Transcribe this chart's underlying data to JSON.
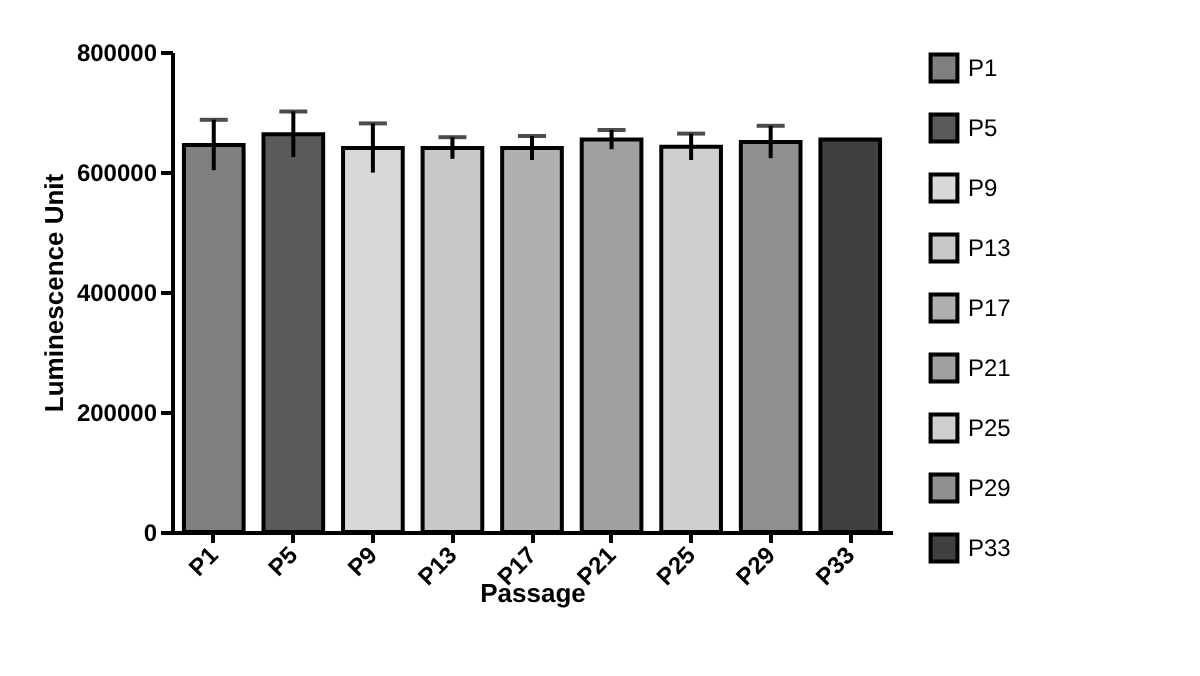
{
  "chart_data": {
    "type": "bar",
    "xlabel": "Passage",
    "ylabel": "Luminescence Unit",
    "categories": [
      "P1",
      "P5",
      "P9",
      "P13",
      "P17",
      "P21",
      "P25",
      "P29",
      "P33"
    ],
    "stacked": true,
    "series": [
      {
        "name": "P1",
        "color": "#808080",
        "values": [
          645000,
          null,
          null,
          null,
          null,
          null,
          null,
          null,
          null
        ],
        "errors": [
          42000,
          null,
          null,
          null,
          null,
          null,
          null,
          null,
          null
        ]
      },
      {
        "name": "P5",
        "color": "#5a5a5a",
        "values": [
          null,
          663000,
          null,
          null,
          null,
          null,
          null,
          null,
          null
        ],
        "errors": [
          null,
          38000,
          null,
          null,
          null,
          null,
          null,
          null,
          null
        ]
      },
      {
        "name": "P9",
        "color": "#d8d8d8",
        "values": [
          null,
          null,
          640000,
          null,
          null,
          null,
          null,
          null,
          null
        ],
        "errors": [
          null,
          null,
          41000,
          null,
          null,
          null,
          null,
          null,
          null
        ]
      },
      {
        "name": "P13",
        "color": "#c8c8c8",
        "values": [
          null,
          null,
          null,
          640000,
          null,
          null,
          null,
          null,
          null
        ],
        "errors": [
          null,
          null,
          null,
          18000,
          null,
          null,
          null,
          null,
          null
        ]
      },
      {
        "name": "P17",
        "color": "#b0b0b0",
        "values": [
          null,
          null,
          null,
          null,
          640000,
          null,
          null,
          null,
          null
        ],
        "errors": [
          null,
          null,
          null,
          null,
          20000,
          null,
          null,
          null,
          null
        ]
      },
      {
        "name": "P21",
        "color": "#a0a0a0",
        "values": [
          null,
          null,
          null,
          null,
          null,
          654000,
          null,
          null,
          null
        ],
        "errors": [
          null,
          null,
          null,
          null,
          null,
          16000,
          null,
          null,
          null
        ]
      },
      {
        "name": "P25",
        "color": "#cfcfcf",
        "values": [
          null,
          null,
          null,
          null,
          null,
          null,
          642000,
          null,
          null
        ],
        "errors": [
          null,
          null,
          null,
          null,
          null,
          null,
          22000,
          null,
          null
        ]
      },
      {
        "name": "P29",
        "color": "#909090",
        "values": [
          null,
          null,
          null,
          null,
          null,
          null,
          null,
          650000,
          null
        ],
        "errors": [
          null,
          null,
          null,
          null,
          null,
          null,
          null,
          27000,
          null
        ]
      },
      {
        "name": "P33",
        "color": "#404040",
        "values": [
          null,
          null,
          null,
          null,
          null,
          null,
          null,
          null,
          654000
        ]
      }
    ],
    "ylim": [
      0,
      800000
    ],
    "yticks": [
      0,
      200000,
      400000,
      600000,
      800000
    ],
    "legend": "right",
    "grid": false
  }
}
